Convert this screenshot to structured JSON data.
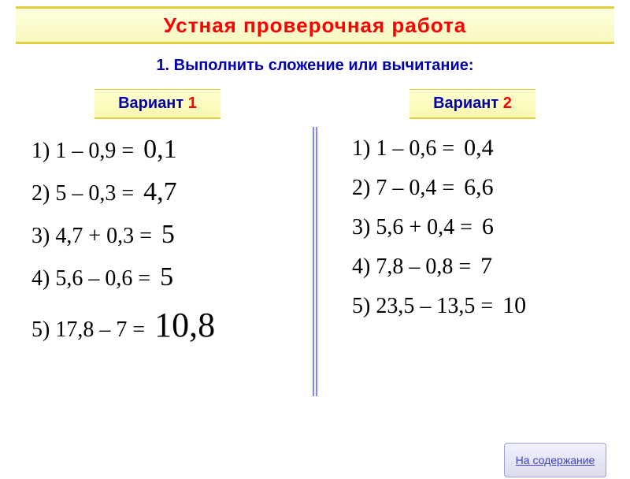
{
  "title": "Устная проверочная работа",
  "subtitle": "1. Выполнить сложение или вычитание:",
  "variant1": {
    "label_prefix": "Вариант ",
    "label_num": "1"
  },
  "variant2": {
    "label_prefix": "Вариант ",
    "label_num": "2"
  },
  "left": {
    "r1": {
      "expr": "1) 1 – 0,9 =",
      "ans": "0,1"
    },
    "r2": {
      "expr": "2) 5 – 0,3 =",
      "ans": "4,7"
    },
    "r3": {
      "expr": "3) 4,7 + 0,3 =",
      "ans": "5"
    },
    "r4": {
      "expr": "4) 5,6 – 0,6 =",
      "ans": "5"
    },
    "r5": {
      "expr": "5) 17,8 – 7 =",
      "ans": "10,8"
    }
  },
  "right": {
    "r1": {
      "expr": "1) 1 – 0,6 =",
      "ans": "0,4"
    },
    "r2": {
      "expr": "2) 7 – 0,4 =",
      "ans": "6,6"
    },
    "r3": {
      "expr": "3) 5,6 + 0,4 =",
      "ans": "6"
    },
    "r4": {
      "expr": "4) 7,8 – 0,8 =",
      "ans": "7"
    },
    "r5": {
      "expr": "5) 23,5 – 13,5 =",
      "ans": "10"
    }
  },
  "nav_button": "На содержание",
  "colors": {
    "title_text": "#ff0000",
    "subtitle_text": "#0000b0",
    "highlight_bg_top": "#ffffe0",
    "highlight_bg_bottom": "#f8f8c0",
    "highlight_border": "#e0d040",
    "divider": "#8080ff",
    "equation_text": "#000000",
    "button_text": "#4040c0",
    "background": "#ffffff"
  },
  "typography": {
    "title_font": "Arial",
    "title_size_pt": 20,
    "equation_font": "Times New Roman",
    "equation_size_pt": 21,
    "answer_size_pt": 26
  }
}
